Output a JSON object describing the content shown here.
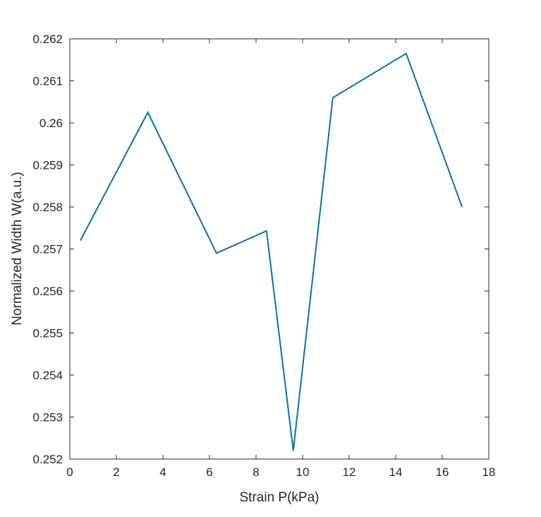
{
  "chart_data": {
    "type": "line",
    "title": "",
    "xlabel": "Strain P(kPa)",
    "ylabel": "Normalized Width W(a.u.)",
    "xlim": [
      0,
      18
    ],
    "ylim": [
      0.252,
      0.262
    ],
    "xticks": [
      0,
      2,
      4,
      6,
      8,
      10,
      12,
      14,
      16,
      18
    ],
    "yticks": [
      0.252,
      0.253,
      0.254,
      0.255,
      0.256,
      0.257,
      0.258,
      0.259,
      0.26,
      0.261,
      0.262
    ],
    "xtick_labels": [
      "0",
      "2",
      "4",
      "6",
      "8",
      "10",
      "12",
      "14",
      "16",
      "18"
    ],
    "ytick_labels": [
      "0.252",
      "0.253",
      "0.254",
      "0.255",
      "0.256",
      "0.257",
      "0.258",
      "0.259",
      "0.26",
      "0.261",
      "0.262"
    ],
    "grid": false,
    "series": [
      {
        "color": "#0072BD",
        "x": [
          0.45,
          3.35,
          6.3,
          8.45,
          9.6,
          11.3,
          14.45,
          16.85
        ],
        "y": [
          0.2572,
          0.26025,
          0.2569,
          0.25743,
          0.2522,
          0.2606,
          0.26165,
          0.258
        ]
      }
    ]
  }
}
